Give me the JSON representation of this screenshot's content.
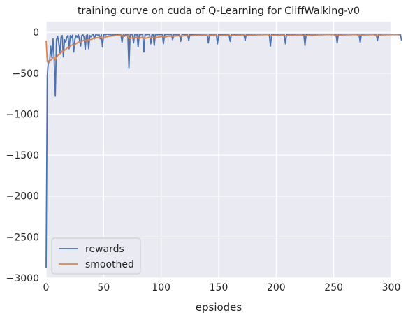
{
  "chart_data": {
    "type": "line",
    "title": "training curve on cuda of Q-Learning for CliffWalking-v0",
    "xlabel": "epsiodes",
    "ylabel": "",
    "xlim": [
      0,
      300
    ],
    "ylim": [
      -3000,
      130
    ],
    "x_ticks": [
      0,
      50,
      100,
      150,
      200,
      250,
      300
    ],
    "y_ticks": [
      0,
      -500,
      -1000,
      -1500,
      -2000,
      -2500,
      -3000
    ],
    "grid": true,
    "legend_position": "lower-left",
    "background_color": "#eaeaf2",
    "grid_color": "#ffffff",
    "series": [
      {
        "name": "rewards",
        "color": "#4c72b0",
        "values": [
          -2880,
          -530,
          -350,
          -370,
          -170,
          -310,
          -80,
          -320,
          -780,
          -90,
          -50,
          -130,
          -250,
          -60,
          -40,
          -300,
          -90,
          -120,
          -60,
          -40,
          -200,
          -40,
          -70,
          -35,
          -240,
          -90,
          -40,
          -60,
          -30,
          -90,
          -170,
          -40,
          -30,
          -60,
          -210,
          -40,
          -30,
          -200,
          -40,
          -55,
          -30,
          -25,
          -80,
          -30,
          -25,
          -40,
          -28,
          -80,
          -30,
          -180,
          -25,
          -30,
          -30,
          -22,
          -25,
          -30,
          -25,
          -40,
          -28,
          -30,
          -25,
          -30,
          -25,
          -30,
          -28,
          -25,
          -120,
          -30,
          -50,
          -25,
          -30,
          -25,
          -440,
          -30,
          -25,
          -30,
          -130,
          -25,
          -30,
          -25,
          -180,
          -28,
          -30,
          -25,
          -30,
          -240,
          -25,
          -30,
          -25,
          -28,
          -30,
          -140,
          -25,
          -30,
          -160,
          -25,
          -28,
          -30,
          -25,
          -30,
          -25,
          -28,
          -140,
          -25,
          -30,
          -25,
          -28,
          -30,
          -25,
          -30,
          -90,
          -25,
          -28,
          -30,
          -25,
          -30,
          -25,
          -110,
          -30,
          -25,
          -28,
          -30,
          -25,
          -30,
          -100,
          -25,
          -30,
          -25,
          -28,
          -30,
          -25,
          -30,
          -25,
          -28,
          -30,
          -25,
          -30,
          -25,
          -28,
          -30,
          -25,
          -130,
          -25,
          -30,
          -25,
          -28,
          -30,
          -25,
          -30,
          -140,
          -25,
          -28,
          -30,
          -25,
          -30,
          -25,
          -28,
          -30,
          -25,
          -30,
          -110,
          -25,
          -28,
          -30,
          -25,
          -30,
          -25,
          -28,
          -30,
          -25,
          -30,
          -25,
          -28,
          -100,
          -25,
          -30,
          -25,
          -28,
          -30,
          -25,
          -30,
          -25,
          -28,
          -30,
          -25,
          -30,
          -25,
          -28,
          -30,
          -25,
          -30,
          -25,
          -28,
          -30,
          -25,
          -170,
          -25,
          -28,
          -30,
          -25,
          -30,
          -25,
          -28,
          -30,
          -25,
          -30,
          -25,
          -28,
          -140,
          -25,
          -30,
          -25,
          -28,
          -30,
          -25,
          -30,
          -25,
          -28,
          -30,
          -25,
          -30,
          -25,
          -28,
          -30,
          -25,
          -160,
          -25,
          -28,
          -30,
          -25,
          -30,
          -25,
          -28,
          -30,
          -25,
          -30,
          -25,
          -28,
          -30,
          -25,
          -30,
          -25,
          -28,
          -30,
          -25,
          -30,
          -25,
          -28,
          -30,
          -25,
          -30,
          -25,
          -28,
          -130,
          -25,
          -30,
          -25,
          -28,
          -30,
          -25,
          -30,
          -25,
          -28,
          -30,
          -25,
          -30,
          -25,
          -28,
          -30,
          -25,
          -30,
          -25,
          -28,
          -120,
          -25,
          -30,
          -25,
          -28,
          -30,
          -25,
          -30,
          -25,
          -28,
          -30,
          -25,
          -30,
          -25,
          -28,
          -100,
          -25,
          -30,
          -25,
          -28,
          -30,
          -25,
          -30,
          -25,
          -28,
          -30,
          -25,
          -30,
          -25,
          -28,
          -30,
          -25,
          -30,
          -25,
          -28,
          -30,
          -100
        ]
      },
      {
        "name": "smoothed",
        "color": "#dd8452",
        "values": [
          -100,
          -360,
          -370,
          -365,
          -340,
          -330,
          -305,
          -300,
          -340,
          -310,
          -285,
          -270,
          -270,
          -250,
          -230,
          -235,
          -220,
          -210,
          -195,
          -180,
          -185,
          -170,
          -160,
          -150,
          -160,
          -150,
          -140,
          -130,
          -120,
          -115,
          -120,
          -110,
          -100,
          -95,
          -105,
          -98,
          -90,
          -100,
          -92,
          -88,
          -82,
          -76,
          -76,
          -72,
          -67,
          -64,
          -60,
          -62,
          -58,
          -70,
          -65,
          -60,
          -57,
          -54,
          -51,
          -49,
          -47,
          -46,
          -44,
          -43,
          -41,
          -40,
          -39,
          -38,
          -37,
          -36,
          -45,
          -44,
          -45,
          -43,
          -42,
          -41,
          -80,
          -75,
          -70,
          -66,
          -72,
          -68,
          -64,
          -61,
          -75,
          -70,
          -66,
          -62,
          -59,
          -80,
          -75,
          -70,
          -66,
          -62,
          -59,
          -70,
          -66,
          -62,
          -72,
          -68,
          -64,
          -61,
          -58,
          -56,
          -53,
          -51,
          -60,
          -57,
          -55,
          -52,
          -50,
          -49,
          -47,
          -45,
          -50,
          -48,
          -47,
          -45,
          -44,
          -43,
          -41,
          -48,
          -46,
          -45,
          -43,
          -42,
          -41,
          -40,
          -46,
          -44,
          -43,
          -41,
          -40,
          -39,
          -38,
          -37,
          -36,
          -35,
          -35,
          -34,
          -34,
          -33,
          -33,
          -33,
          -32,
          -42,
          -40,
          -39,
          -38,
          -37,
          -36,
          -35,
          -35,
          -46,
          -44,
          -42,
          -41,
          -39,
          -38,
          -37,
          -36,
          -35,
          -34,
          -34,
          -42,
          -40,
          -39,
          -38,
          -37,
          -36,
          -35,
          -34,
          -34,
          -33,
          -33,
          -32,
          -32,
          -39,
          -38,
          -37,
          -36,
          -35,
          -34,
          -34,
          -33,
          -33,
          -32,
          -32,
          -31,
          -31,
          -31,
          -30,
          -30,
          -30,
          -29,
          -29,
          -29,
          -29,
          -43,
          -41,
          -40,
          -39,
          -38,
          -37,
          -36,
          -35,
          -34,
          -34,
          -33,
          -33,
          -32,
          -43,
          -41,
          -40,
          -39,
          -38,
          -37,
          -36,
          -35,
          -35,
          -34,
          -33,
          -33,
          -32,
          -32,
          -32,
          -31,
          -44,
          -42,
          -41,
          -40,
          -38,
          -37,
          -36,
          -35,
          -35,
          -34,
          -33,
          -33,
          -32,
          -32,
          -31,
          -31,
          -31,
          -30,
          -30,
          -30,
          -29,
          -29,
          -29,
          -29,
          -29,
          -28,
          -28,
          -28,
          -39,
          -37,
          -36,
          -35,
          -34,
          -34,
          -33,
          -32,
          -32,
          -31,
          -31,
          -31,
          -30,
          -30,
          -30,
          -29,
          -29,
          -29,
          -29,
          -28,
          -37,
          -36,
          -35,
          -34,
          -33,
          -33,
          -32,
          -32,
          -31,
          -31,
          -30,
          -30,
          -30,
          -29,
          -29,
          -37,
          -36,
          -35,
          -34,
          -33,
          -33,
          -32,
          -31,
          -31,
          -31,
          -30,
          -30,
          -30,
          -29,
          -29,
          -29,
          -29,
          -28,
          -28,
          -28,
          -28,
          -35
        ]
      }
    ]
  }
}
